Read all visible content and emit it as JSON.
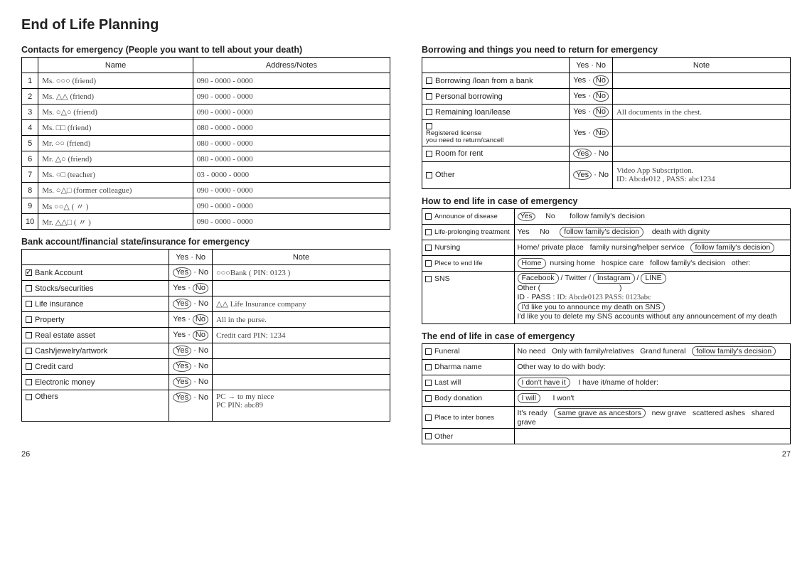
{
  "heading": "End of Life Planning",
  "page_left": "26",
  "page_right": "27",
  "contacts": {
    "title": "Contacts for emergency (People you want to tell about your death)",
    "h_name": "Name",
    "h_addr": "Address/Notes",
    "rows": [
      {
        "n": "1",
        "name": "Ms. ○○○  (friend)",
        "addr": "090 - 0000 - 0000"
      },
      {
        "n": "2",
        "name": "Ms. △△  (friend)",
        "addr": "090 - 0000 - 0000"
      },
      {
        "n": "3",
        "name": "Ms. ○△○ (friend)",
        "addr": "090 - 0000 - 0000"
      },
      {
        "n": "4",
        "name": "Ms. □□  (friend)",
        "addr": "080 - 0000 - 0000"
      },
      {
        "n": "5",
        "name": "Mr. ○○  (friend)",
        "addr": "080 - 0000 - 0000"
      },
      {
        "n": "6",
        "name": "Mr. △○  (friend)",
        "addr": "080 - 0000 - 0000"
      },
      {
        "n": "7",
        "name": "Ms. ○□  (teacher)",
        "addr": "03 - 0000 - 0000"
      },
      {
        "n": "8",
        "name": "Ms. ○△□ (former colleague)",
        "addr": "090 - 0000 - 0000"
      },
      {
        "n": "9",
        "name": "Ms ○○△ (    〃    )",
        "addr": "090 - 0000 - 0000"
      },
      {
        "n": "10",
        "name": "Mr. △△□ (    〃    )",
        "addr": "090 - 0000 - 0000"
      }
    ]
  },
  "bank": {
    "title": "Bank account/financial state/insurance for emergency",
    "h_yn": "Yes · No",
    "h_note": "Note",
    "rows": [
      {
        "label": "Bank Account",
        "checked": true,
        "yes": true,
        "no": false,
        "note": "○○○Bank ( PIN: 0123 )"
      },
      {
        "label": "Stocks/securities",
        "checked": false,
        "yes": false,
        "no": true,
        "note": ""
      },
      {
        "label": "Life insurance",
        "checked": false,
        "yes": true,
        "no": false,
        "note": "△△ Life Insurance company"
      },
      {
        "label": "Property",
        "checked": false,
        "yes": false,
        "no": true,
        "note": "All in the purse."
      },
      {
        "label": "Real estate asset",
        "checked": false,
        "yes": false,
        "no": true,
        "note": "Credit card PIN: 1234"
      },
      {
        "label": "Cash/jewelry/artwork",
        "checked": false,
        "yes": true,
        "no": false,
        "note": ""
      },
      {
        "label": "Credit card",
        "checked": false,
        "yes": true,
        "no": false,
        "note": ""
      },
      {
        "label": "Electronic money",
        "checked": false,
        "yes": true,
        "no": false,
        "note": ""
      },
      {
        "label": "Others",
        "checked": false,
        "yes": true,
        "no": false,
        "note": "PC → to my niece\nPC PIN: abc89"
      }
    ]
  },
  "borrow": {
    "title": "Borrowing and things you need to return for emergency",
    "h_yn": "Yes · No",
    "h_note": "Note",
    "rows": [
      {
        "label": "Borrowing /loan from a bank",
        "yes": false,
        "no": true,
        "note": ""
      },
      {
        "label": "Personal borrowing",
        "yes": false,
        "no": true,
        "note": ""
      },
      {
        "label": "Remaining loan/lease",
        "yes": false,
        "no": true,
        "note": "All documents in the chest."
      },
      {
        "label": "Registered license\nyou need to return/cancell",
        "yes": false,
        "no": true,
        "note": ""
      },
      {
        "label": "Room for rent",
        "yes": true,
        "no": false,
        "note": ""
      },
      {
        "label": "Other",
        "yes": true,
        "no": false,
        "note": "Video App Subscription.\nID: Abcde012 , PASS: abc1234"
      }
    ]
  },
  "howend": {
    "title": "How to end life in case of emergency",
    "rows": {
      "r0": {
        "label": "Announce of disease",
        "yes_circ": true,
        "t_yes": "Yes",
        "t_no": "No",
        "t_follow": "follow  family's decision"
      },
      "r1": {
        "label": "Life-prolonging treatment",
        "t_yes": "Yes",
        "t_no": "No",
        "follow_circ": true,
        "t_follow": "follow family's decision",
        "t_dig": "death with dignity"
      },
      "r2": {
        "label": "Nursing",
        "t_a": "Home/ private place",
        "t_b": "family nursing/helper service",
        "t_c": "follow family's decision",
        "c_circ": true
      },
      "r3": {
        "label": "Plece to end life",
        "t_a": "Home",
        "a_circ": true,
        "t_b": "nursing home",
        "t_c": "hospice care",
        "t_d": "follow family's decision",
        "t_e": "other:"
      },
      "r4": {
        "label": "SNS",
        "line1_a": "Facebook",
        "line1_b": "Twitter",
        "line1_c": "Instagram",
        "line1_d": "LINE",
        "line2": "Other (",
        "line2b": ")",
        "line3": "ID · PASS :",
        "line3h": "ID: Abcde0123  PASS: 0123abc",
        "line4": "I'd like you to announce my death on SNS",
        "line4_circ": true,
        "line5": "I'd like you to delete my SNS accounts without any announcement of my death"
      }
    }
  },
  "endlife": {
    "title": "The end of life in case of emergency",
    "rows": {
      "r0": {
        "label": "Funeral",
        "a": "No need",
        "b": "Only with family/relatives",
        "c": "Grand funeral",
        "d": "follow family's decision",
        "d_circ": true
      },
      "r1": {
        "label": "Dharma name",
        "a": "Other way to do with  body:"
      },
      "r2": {
        "label": "Last will",
        "a": "I don't have it",
        "a_circ": true,
        "b": "I have it/name of holder:"
      },
      "r3": {
        "label": "Body donation",
        "a": "I will",
        "a_circ": true,
        "b": "I won't"
      },
      "r4": {
        "label": "Place to inter  bones",
        "a": "It's ready",
        "b": "same grave as ancestors",
        "b_circ": true,
        "c": "new grave",
        "d": "scattered ashes",
        "e": "shared grave"
      },
      "r5": {
        "label": "Other",
        "a": ""
      }
    }
  }
}
